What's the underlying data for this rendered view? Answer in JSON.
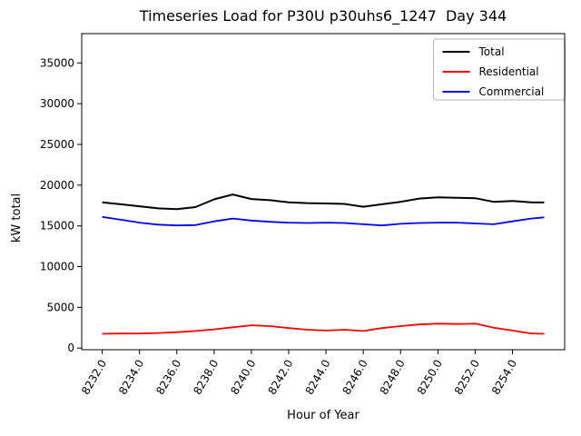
{
  "chart_data": {
    "type": "line",
    "title": "Timeseries Load for P30U p30uhs6_1247  Day 344",
    "xlabel": "Hour of Year",
    "ylabel": "kW total",
    "x": [
      8232,
      8233,
      8234,
      8235,
      8236,
      8237,
      8238,
      8239,
      8240,
      8241,
      8242,
      8243,
      8244,
      8245,
      8246,
      8247,
      8248,
      8249,
      8250,
      8251,
      8252,
      8253,
      8254,
      8255,
      8255.7
    ],
    "series": [
      {
        "name": "Total",
        "color": "#000000",
        "values": [
          17900,
          17650,
          17400,
          17150,
          17050,
          17300,
          18250,
          18850,
          18300,
          18150,
          17900,
          17800,
          17750,
          17700,
          17350,
          17650,
          17950,
          18350,
          18500,
          18450,
          18400,
          17950,
          18050,
          17900,
          17870
        ]
      },
      {
        "name": "Residential",
        "color": "#ff0000",
        "values": [
          1750,
          1800,
          1780,
          1850,
          1950,
          2100,
          2300,
          2550,
          2800,
          2700,
          2450,
          2250,
          2150,
          2250,
          2100,
          2450,
          2700,
          2900,
          3000,
          2950,
          3000,
          2500,
          2150,
          1800,
          1750
        ]
      },
      {
        "name": "Commercial",
        "color": "#0000ff",
        "values": [
          16100,
          15750,
          15400,
          15150,
          15050,
          15100,
          15550,
          15900,
          15650,
          15500,
          15400,
          15350,
          15400,
          15350,
          15200,
          15050,
          15250,
          15350,
          15400,
          15400,
          15300,
          15200,
          15550,
          15900,
          16050
        ]
      }
    ],
    "xticks": [
      8232,
      8234,
      8236,
      8238,
      8240,
      8242,
      8244,
      8246,
      8248,
      8250,
      8252,
      8254
    ],
    "xtick_labels": [
      "8232.0",
      "8234.0",
      "8236.0",
      "8238.0",
      "8240.0",
      "8242.0",
      "8244.0",
      "8246.0",
      "8248.0",
      "8250.0",
      "8252.0",
      "8254.0"
    ],
    "yticks": [
      0,
      5000,
      10000,
      15000,
      20000,
      25000,
      30000,
      35000
    ],
    "ytick_labels": [
      "0",
      "5000",
      "10000",
      "15000",
      "20000",
      "25000",
      "30000",
      "35000"
    ],
    "xlim": [
      8230.9,
      8256.8
    ],
    "ylim": [
      -200,
      38600
    ],
    "legend": {
      "position": "upper right",
      "entries": [
        "Total",
        "Residential",
        "Commercial"
      ]
    },
    "grid": false,
    "axis_color": "#000000",
    "background_color": "#ffffff"
  }
}
